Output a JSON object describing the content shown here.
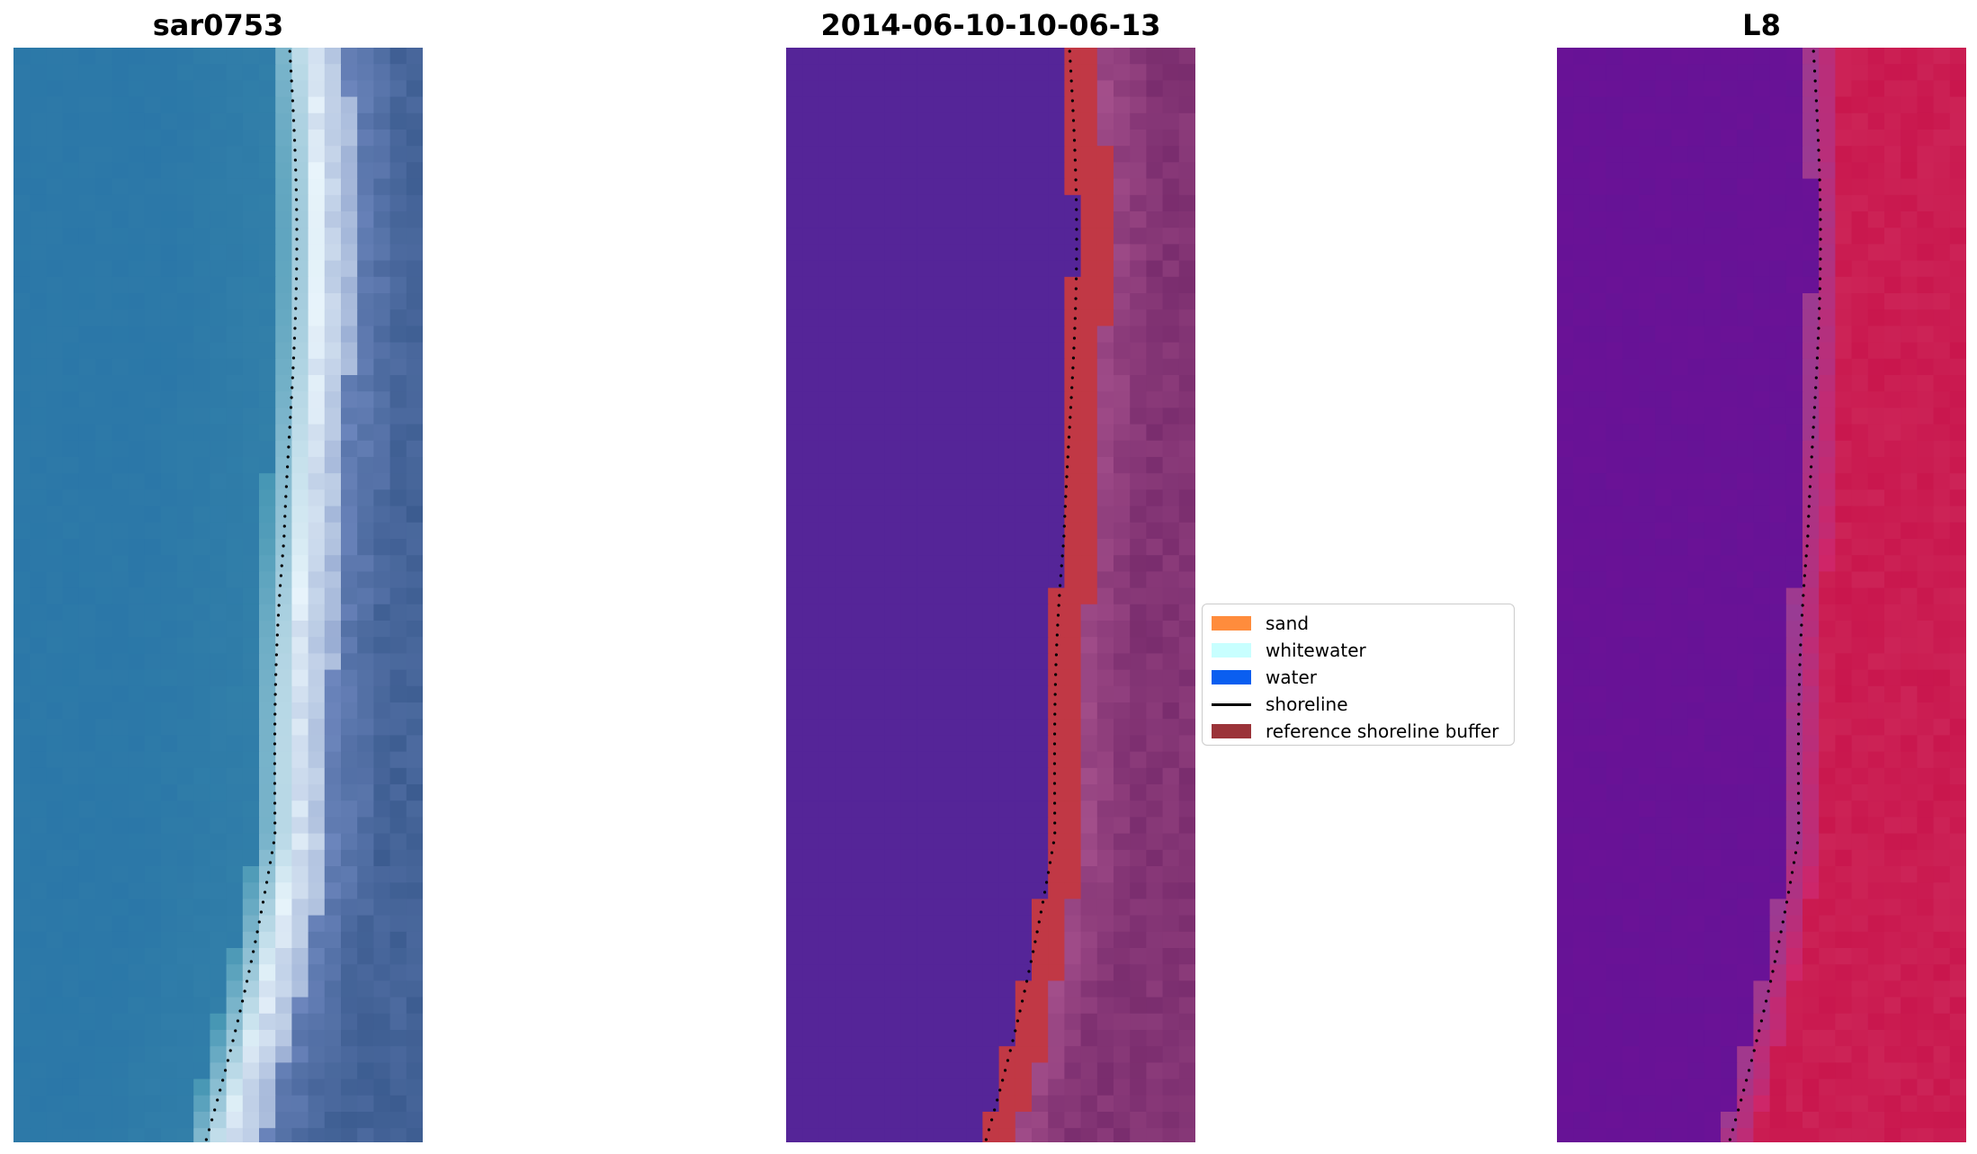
{
  "figure": {
    "panels": [
      {
        "title": "sar0753"
      },
      {
        "title": "2014-06-10-10-06-13"
      },
      {
        "title": "L8"
      }
    ]
  },
  "legend": {
    "items": [
      {
        "label": "sand",
        "type": "patch",
        "color": "#ff8c3c"
      },
      {
        "label": "whitewater",
        "type": "patch",
        "color": "#c8ffff"
      },
      {
        "label": "water",
        "type": "patch",
        "color": "#0a5ef0"
      },
      {
        "label": "shoreline",
        "type": "line",
        "color": "#000000"
      },
      {
        "label": "reference shoreline buffer",
        "type": "patch",
        "color": "#9b3339"
      }
    ]
  },
  "colors": {
    "rgb_water": "#2b77a8",
    "rgb_surf": "#e8f4fb",
    "rgb_land": "#3e5e92",
    "class_water": "#552598",
    "class_buffer": "#c13845",
    "class_land": "#7a2d6e",
    "ir_water": "#6a1296",
    "ir_land": "#c8124a"
  }
}
